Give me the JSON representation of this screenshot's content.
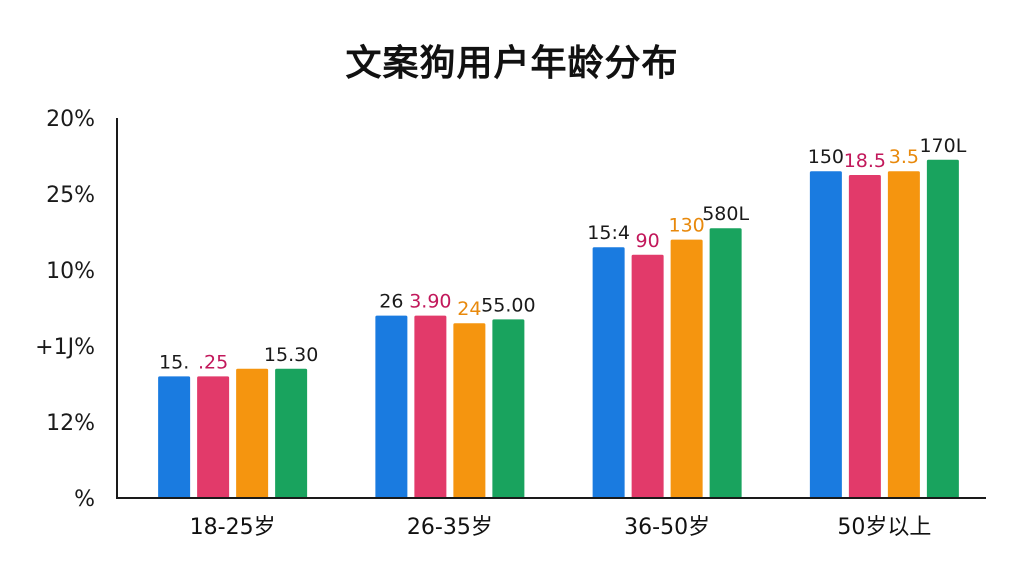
{
  "chart_data": {
    "type": "bar",
    "title": "文案狗用户年龄分布",
    "xlabel": "",
    "ylabel": "",
    "y_tick_labels": [
      "20%",
      "25%",
      "10%",
      "+1J%",
      "12%",
      "%"
    ],
    "ylim": [
      0,
      5
    ],
    "categories": [
      "18-25岁",
      "26-35岁",
      "36-50岁",
      "50岁以上"
    ],
    "series": [
      {
        "color": "#1a7be0",
        "values": [
          1.6,
          2.4,
          3.3,
          4.3
        ]
      },
      {
        "color": "#e23a6a",
        "values": [
          1.6,
          2.4,
          3.2,
          4.25
        ]
      },
      {
        "color": "#f5950f",
        "values": [
          1.7,
          2.3,
          3.4,
          4.3
        ]
      },
      {
        "color": "#19a35e",
        "values": [
          1.7,
          2.35,
          3.55,
          4.45
        ]
      }
    ],
    "data_labels": [
      [
        "15.",
        "26",
        "15:4",
        "150"
      ],
      [
        ".25",
        "3.90",
        "90",
        "18.5"
      ],
      [
        "",
        "24",
        "130",
        "3.5"
      ],
      [
        "15.30",
        "55.00",
        "580L",
        "170L"
      ]
    ],
    "label_colors": [
      "#1a1a1a",
      "#c2185b",
      "#e8890c",
      "#1a1a1a"
    ],
    "grid": false,
    "legend": "none"
  }
}
